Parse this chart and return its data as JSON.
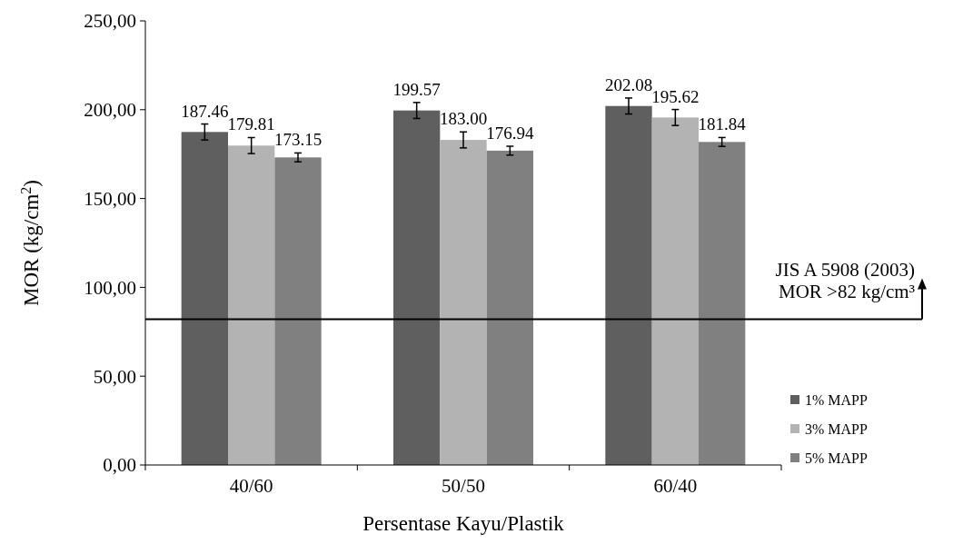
{
  "chart_data": {
    "type": "bar",
    "xlabel": "Persentase Kayu/Plastik",
    "ylabel": "MOR (kg/cm$^{2}$)",
    "categories": [
      "40/60",
      "50/50",
      "60/40"
    ],
    "series": [
      {
        "name": "1% MAPP",
        "color": "#5f5f5f",
        "values": [
          187.46,
          199.57,
          202.08
        ],
        "errors": [
          4.5,
          4.5,
          4.5
        ]
      },
      {
        "name": "3% MAPP",
        "color": "#b3b3b3",
        "values": [
          179.81,
          183.0,
          195.62
        ],
        "errors": [
          4.5,
          4.5,
          4.5
        ]
      },
      {
        "name": "5% MAPP",
        "color": "#808080",
        "values": [
          173.15,
          176.94,
          181.84
        ],
        "errors": [
          2.5,
          2.5,
          2.5
        ]
      }
    ],
    "value_labels": [
      [
        "187.46",
        "199.57",
        "202.08"
      ],
      [
        "179.81",
        "183.00",
        "195.62"
      ],
      [
        "173.15",
        "176.94",
        "181.84"
      ]
    ],
    "ylim": [
      0,
      250
    ],
    "yticks": [
      {
        "value": 0,
        "label": "0,00"
      },
      {
        "value": 50,
        "label": "50,00"
      },
      {
        "value": 100,
        "label": "100,00"
      },
      {
        "value": 150,
        "label": "150,00"
      },
      {
        "value": 200,
        "label": "200,00"
      },
      {
        "value": 250,
        "label": "250,00"
      }
    ],
    "ref_lines": [
      {
        "axis": "y",
        "value": 82,
        "label": "JIS A 5908 (2003)\nMOR >82 kg/cm³",
        "color": "#000000"
      }
    ],
    "legend": "right",
    "grid": false
  }
}
